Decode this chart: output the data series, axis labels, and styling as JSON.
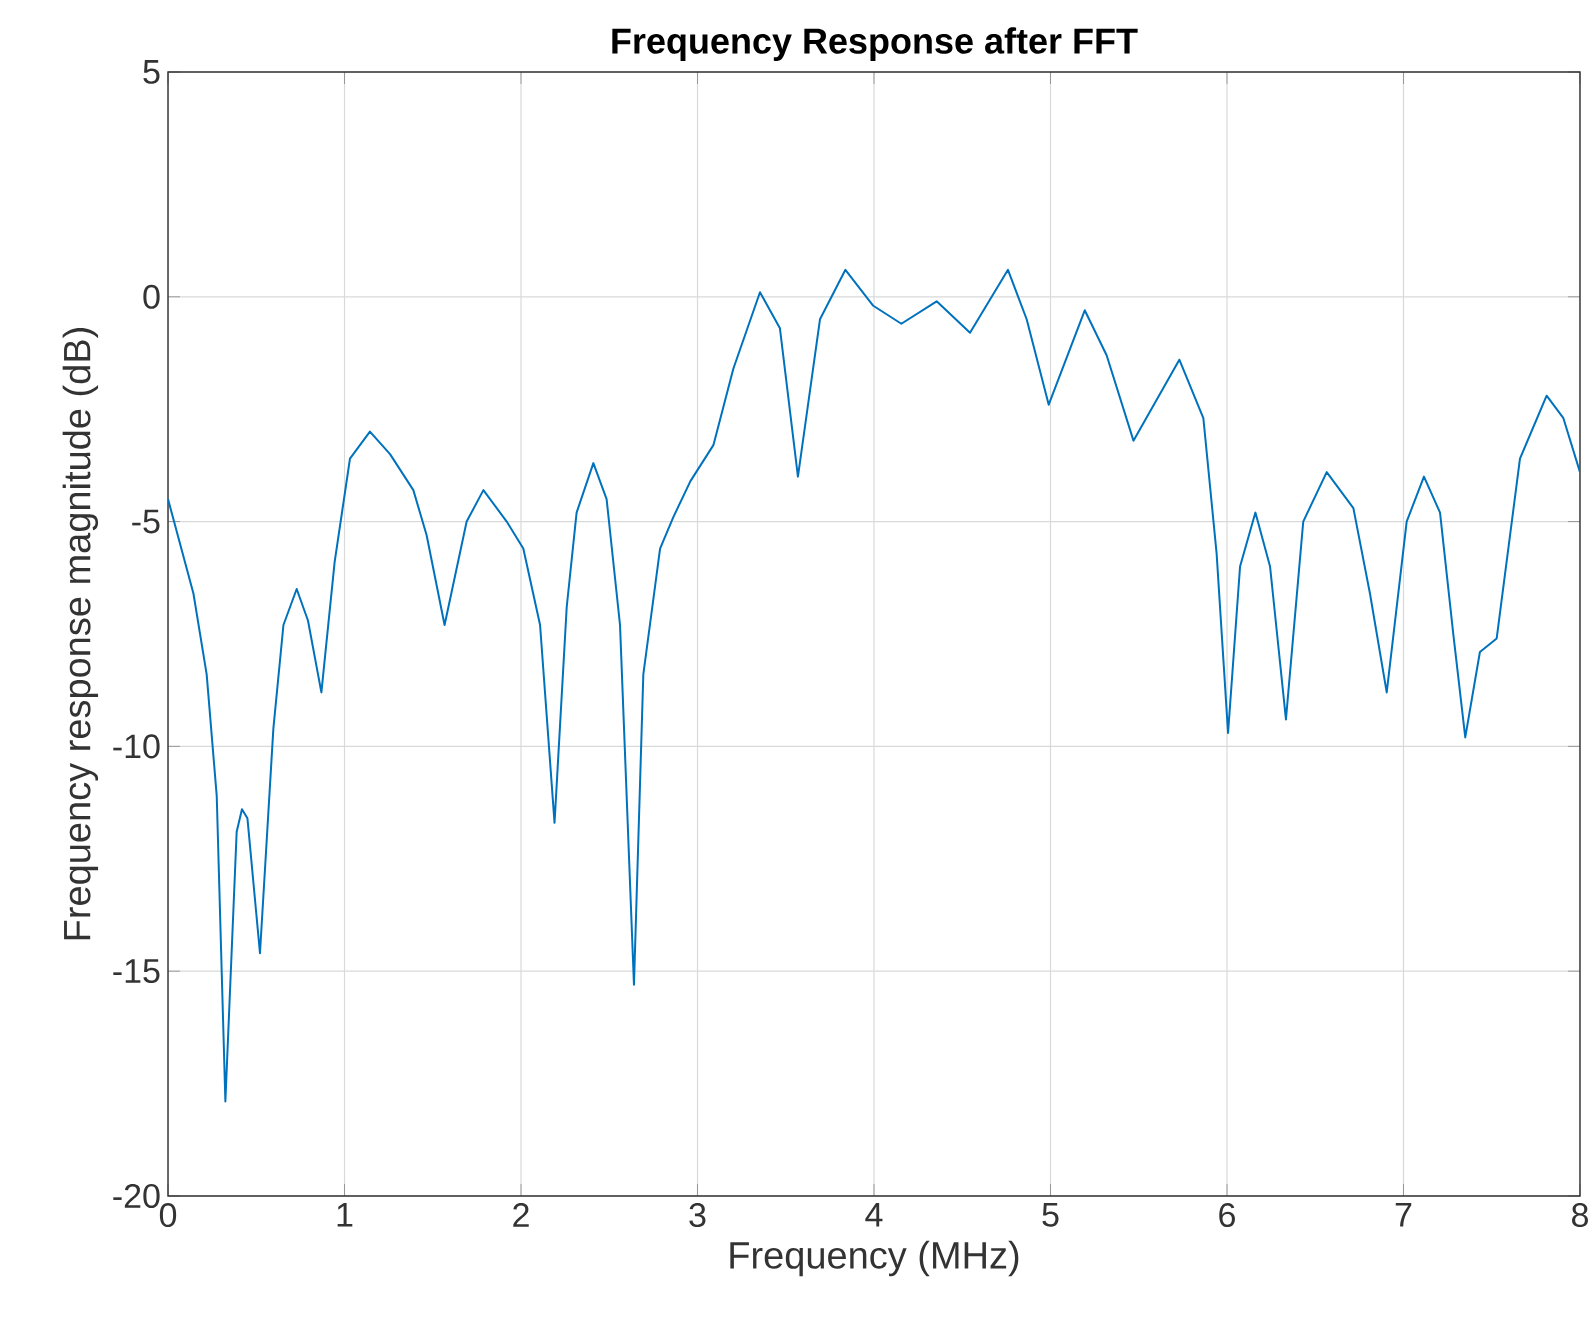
{
  "chart_data": {
    "type": "line",
    "title": "Frequency Response after FFT",
    "xlabel": "Frequency (MHz)",
    "ylabel": "Frequency response magnitude (dB)",
    "x": [
      0,
      0.144,
      0.219,
      0.276,
      0.325,
      0.389,
      0.419,
      0.45,
      0.521,
      0.597,
      0.654,
      0.729,
      0.793,
      0.869,
      0.944,
      1.031,
      1.144,
      1.258,
      1.39,
      1.465,
      1.567,
      1.692,
      1.787,
      1.919,
      2.013,
      2.108,
      2.19,
      2.259,
      2.315,
      2.41,
      2.485,
      2.561,
      2.64,
      2.693,
      2.788,
      2.863,
      2.96,
      3.09,
      3.203,
      3.354,
      3.467,
      3.569,
      3.694,
      3.838,
      3.996,
      4.155,
      4.355,
      4.544,
      4.759,
      4.865,
      4.99,
      5.194,
      5.318,
      5.47,
      5.73,
      5.866,
      5.941,
      6.006,
      6.074,
      6.161,
      6.244,
      6.334,
      6.432,
      6.565,
      6.716,
      6.81,
      6.905,
      7.018,
      7.116,
      7.207,
      7.282,
      7.35,
      7.433,
      7.528,
      7.66,
      7.811,
      7.906,
      8
    ],
    "series": [
      {
        "color": "#0072bd",
        "values": [
          -4.5,
          -6.6,
          -8.4,
          -11.1,
          -17.9,
          -11.9,
          -11.4,
          -11.6,
          -14.6,
          -9.6,
          -7.3,
          -6.5,
          -7.2,
          -8.8,
          -5.9,
          -3.6,
          -3.0,
          -3.5,
          -4.3,
          -5.3,
          -7.3,
          -5.0,
          -4.3,
          -5.0,
          -5.6,
          -7.3,
          -11.7,
          -6.9,
          -4.8,
          -3.7,
          -4.5,
          -7.3,
          -15.3,
          -8.4,
          -5.6,
          -4.9,
          -4.1,
          -3.3,
          -1.6,
          0.1,
          -0.7,
          -4.0,
          -0.5,
          0.6,
          -0.2,
          -0.6,
          -0.1,
          -0.8,
          0.6,
          -0.5,
          -2.4,
          -0.3,
          -1.3,
          -3.2,
          -1.4,
          -2.7,
          -5.7,
          -9.7,
          -6.0,
          -4.8,
          -6.0,
          -9.4,
          -5.0,
          -3.9,
          -4.7,
          -6.6,
          -8.8,
          -5.0,
          -4.0,
          -4.8,
          -7.5,
          -9.8,
          -7.9,
          -7.6,
          -3.6,
          -2.2,
          -2.7,
          -3.9
        ]
      }
    ],
    "xlim": [
      0,
      8
    ],
    "ylim": [
      -20,
      5
    ],
    "xticks": [
      0,
      1,
      2,
      3,
      4,
      5,
      6,
      7,
      8
    ],
    "yticks": [
      -20,
      -15,
      -10,
      -5,
      0,
      5
    ],
    "grid": true
  }
}
